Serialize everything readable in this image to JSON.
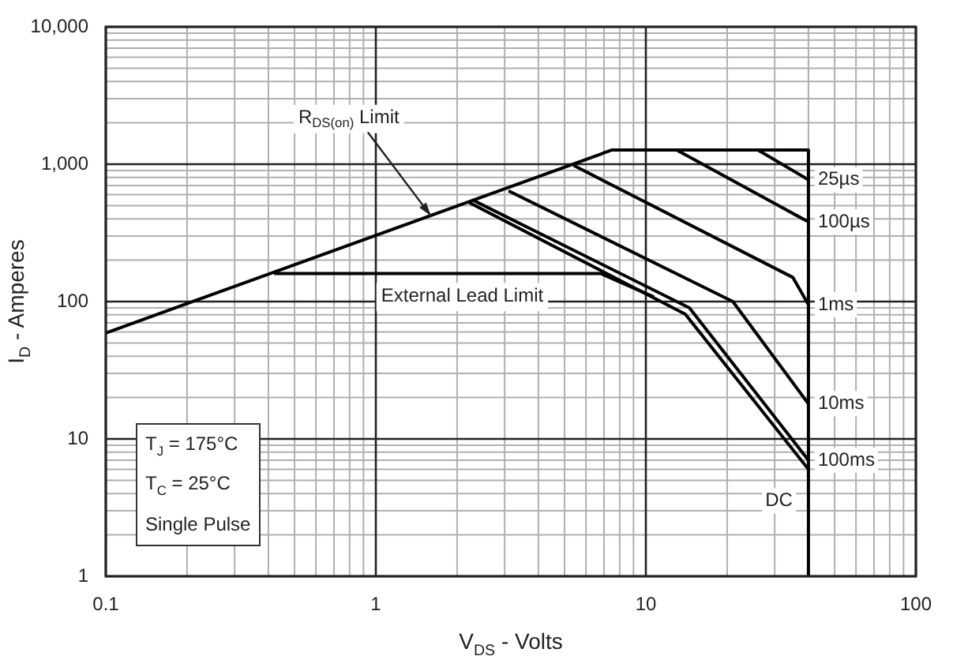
{
  "chart_data": {
    "type": "line",
    "xlabel": "V$_{DS}$ - Volts",
    "ylabel": "I$_{D}$ - Amperes",
    "log": "xy",
    "grid": true,
    "legend": false,
    "marker": "none",
    "line_style": "solid",
    "xlim": [
      0.1,
      100
    ],
    "xticks": [
      0.1,
      1,
      10,
      100
    ],
    "ylim": [
      1,
      10000
    ],
    "yticks": [
      1,
      10,
      100,
      {
        "value": 1000,
        "label": "1,000"
      },
      {
        "value": 10000,
        "label": "10,000"
      }
    ],
    "series": [
      {
        "color": "#000000",
        "x": [
          0.1,
          7.5,
          40,
          40
        ],
        "values": [
          59,
          1270,
          1270,
          1
        ]
      },
      {
        "name": "25µs",
        "color": "#000000",
        "x": [
          26,
          40
        ],
        "values": [
          1270,
          770
        ]
      },
      {
        "name": "100µs",
        "color": "#000000",
        "x": [
          13,
          40
        ],
        "values": [
          1270,
          380
        ]
      },
      {
        "name": "1ms",
        "color": "#000000",
        "x": [
          5.4,
          35,
          40
        ],
        "values": [
          980,
          150,
          95
        ]
      },
      {
        "name": "10ms",
        "color": "#000000",
        "x": [
          3.1,
          21,
          40
        ],
        "values": [
          640,
          100,
          18
        ]
      },
      {
        "name": "100ms",
        "color": "#000000",
        "x": [
          2.3,
          14.5,
          40
        ],
        "values": [
          545,
          90,
          7
        ]
      },
      {
        "name": "DC",
        "color": "#000000",
        "x": [
          2.2,
          14,
          40
        ],
        "values": [
          530,
          81,
          6
        ]
      },
      {
        "color": "#000000",
        "x": [
          0.42,
          6.8,
          10.7
        ],
        "values": [
          160,
          160,
          108
        ]
      }
    ],
    "annotations": [
      {
        "text": "R$_{DS(on)}$ Limit",
        "x": 1.6,
        "y": 420
      },
      "External Lead Limit",
      "T$_{J}$ = 175°C",
      "T$_{C}$ = 25°C",
      "Single Pulse"
    ]
  }
}
